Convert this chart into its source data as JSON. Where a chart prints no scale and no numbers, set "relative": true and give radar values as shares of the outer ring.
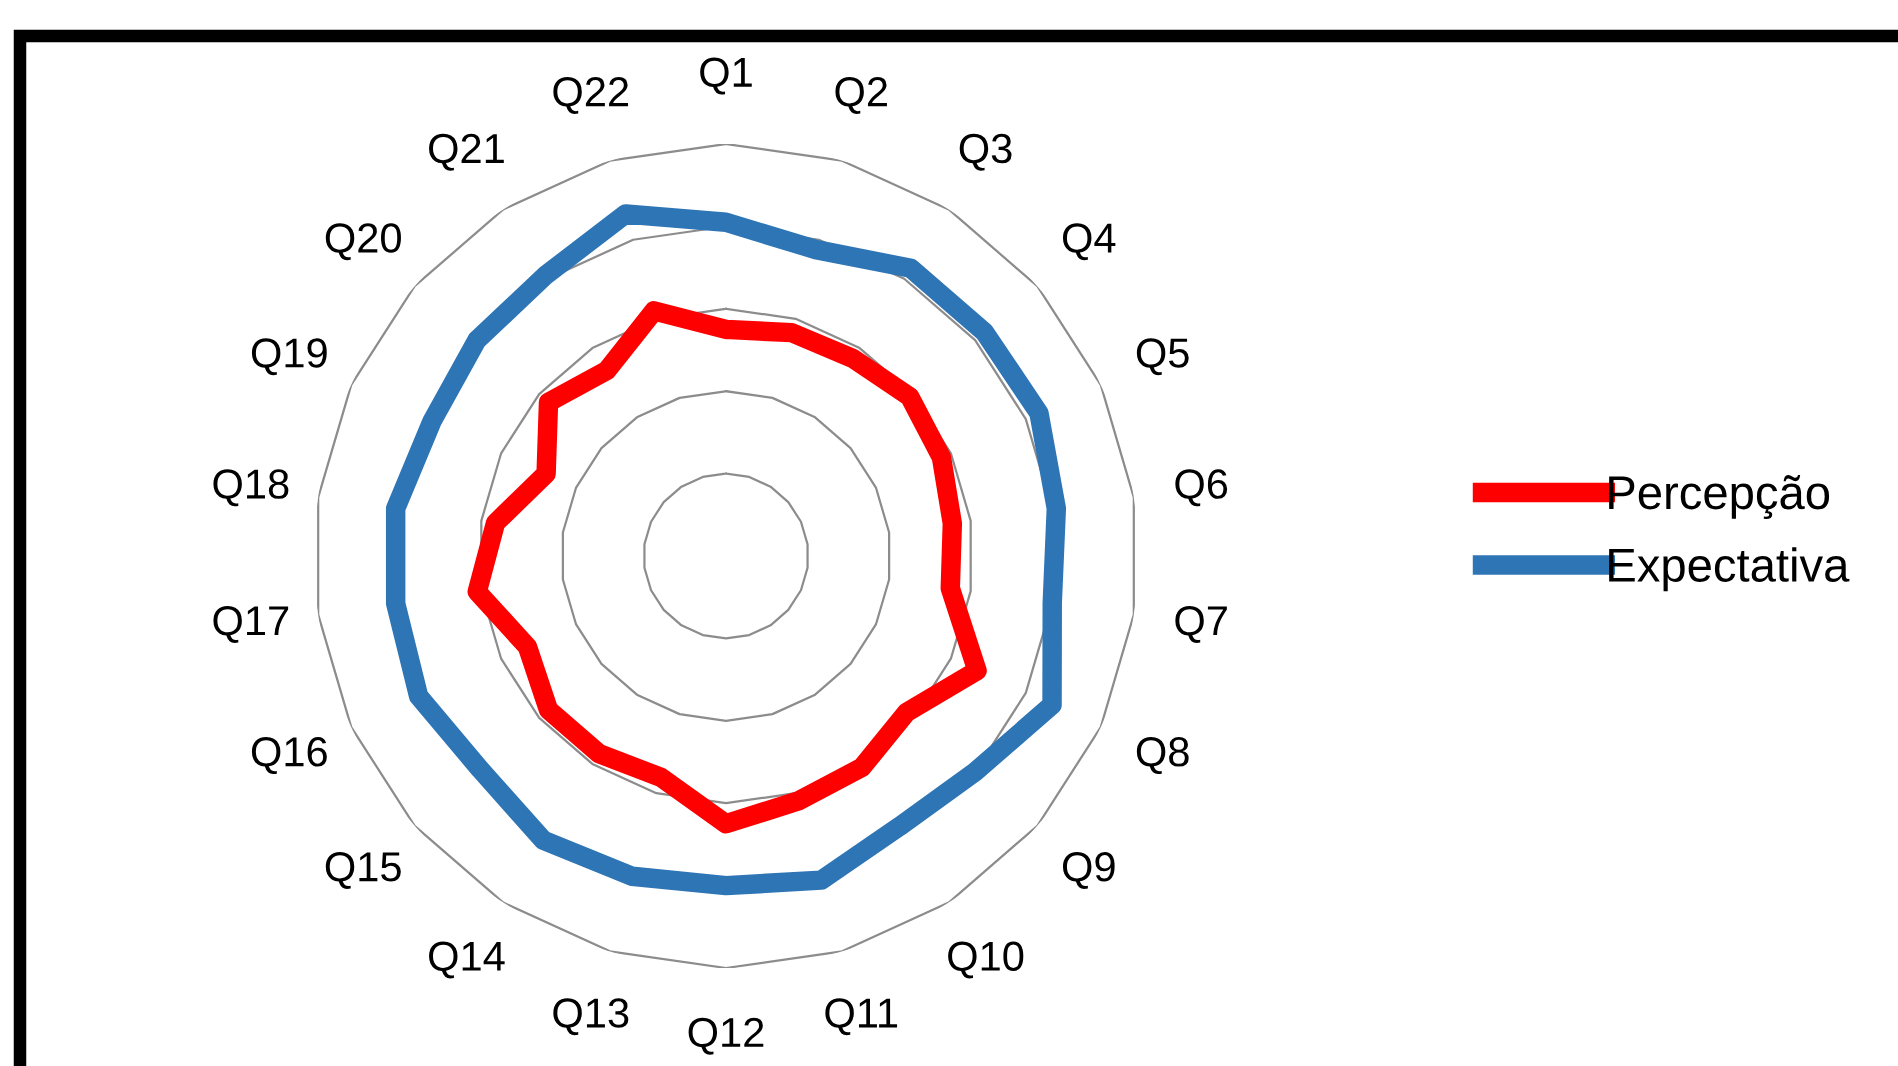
{
  "chart_data": {
    "type": "radar",
    "relative": true,
    "grid": true,
    "legend": "right",
    "categories": [
      "Q1",
      "Q2",
      "Q3",
      "Q4",
      "Q5",
      "Q6",
      "Q7",
      "Q8",
      "Q9",
      "Q10",
      "Q11",
      "Q12",
      "Q13",
      "Q14",
      "Q15",
      "Q16",
      "Q17",
      "Q18",
      "Q19",
      "Q20",
      "Q21",
      "Q22"
    ],
    "series": [
      {
        "name": "Percepção",
        "color": "#ff0000",
        "values": [
          0.55,
          0.565,
          0.57,
          0.59,
          0.575,
          0.555,
          0.55,
          0.67,
          0.58,
          0.61,
          0.62,
          0.65,
          0.56,
          0.57,
          0.57,
          0.53,
          0.61,
          0.565,
          0.48,
          0.57,
          0.535,
          0.62
        ]
      },
      {
        "name": "Expectativa",
        "color": "#2e75b6",
        "values": [
          0.81,
          0.775,
          0.83,
          0.83,
          0.835,
          0.81,
          0.8,
          0.87,
          0.8,
          0.78,
          0.82,
          0.8,
          0.81,
          0.82,
          0.79,
          0.82,
          0.81,
          0.81,
          0.785,
          0.8,
          0.81,
          0.865
        ]
      }
    ]
  }
}
